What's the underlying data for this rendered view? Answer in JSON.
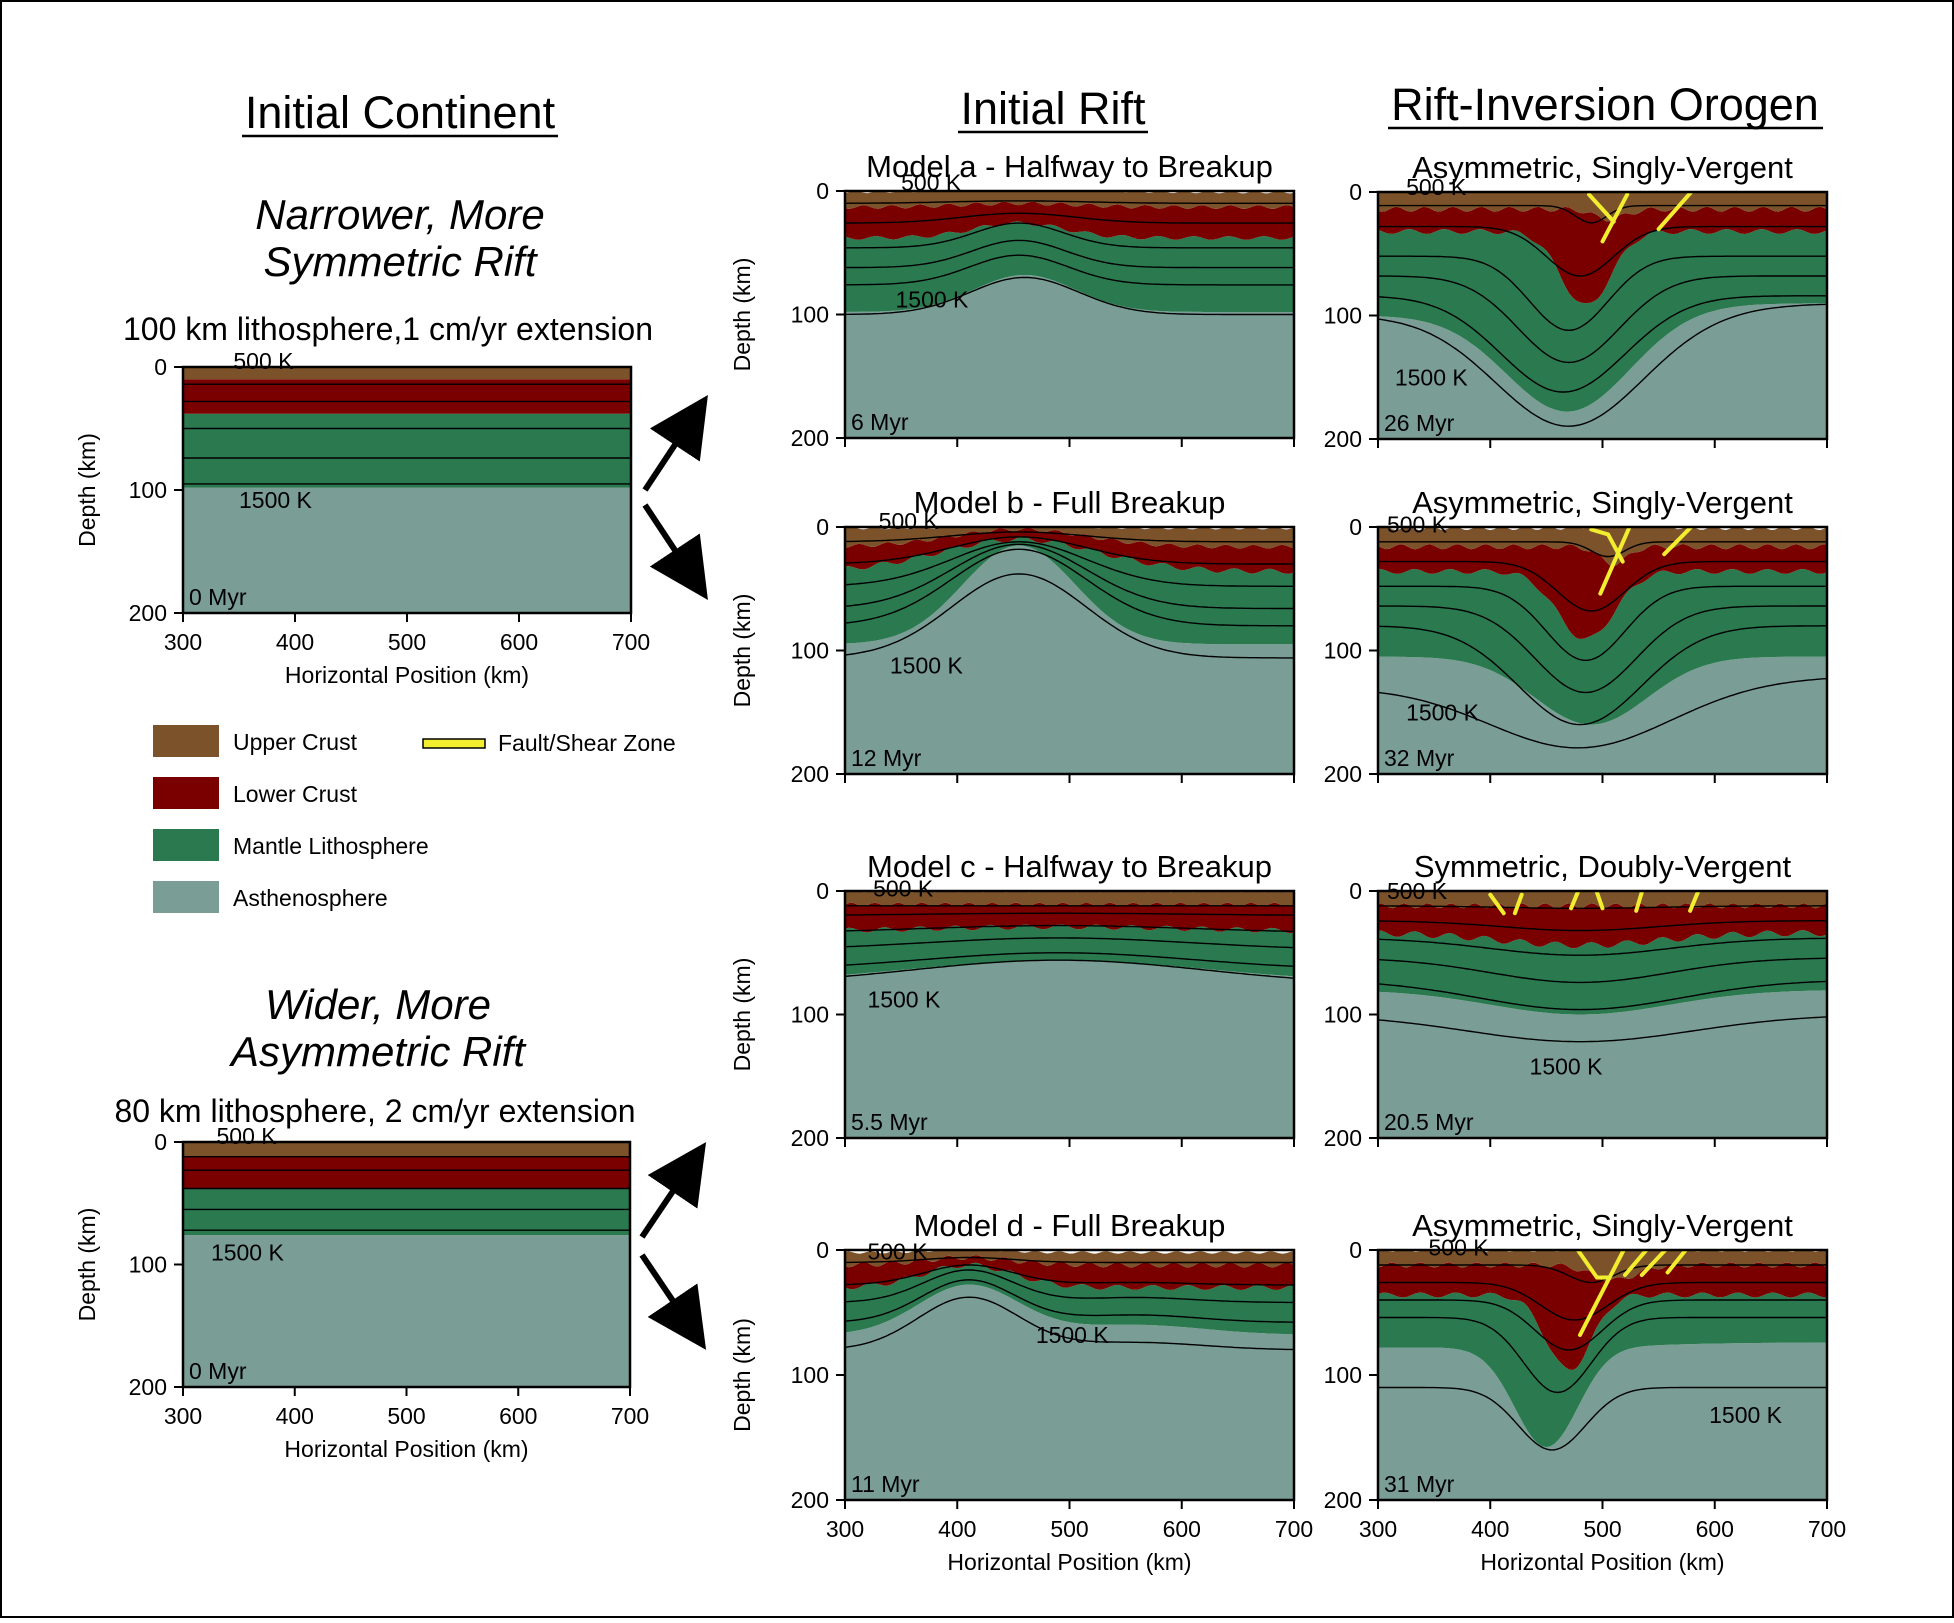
{
  "headers": {
    "initial_continent": "Initial Continent",
    "initial_rift": "Initial Rift",
    "orogen": "Rift-Inversion Orogen"
  },
  "scenarios": [
    {
      "title_line1": "Narrower, More",
      "title_line2": "Symmetric Rift",
      "description": "100 km lithosphere,1 cm/yr extension"
    },
    {
      "title_line1": "Wider, More",
      "title_line2": "Asymmetric Rift",
      "description": "80 km lithosphere, 2 cm/yr extension"
    }
  ],
  "axis": {
    "y_label": "Depth (km)",
    "x_label": "Horizontal Position (km)",
    "y_ticks": [
      "0",
      "100",
      "200"
    ],
    "x_ticks": [
      "300",
      "400",
      "500",
      "600",
      "700"
    ],
    "x_range": [
      300,
      700
    ],
    "y_range": [
      0,
      200
    ]
  },
  "legend": {
    "upper_crust": "Upper Crust",
    "lower_crust": "Lower Crust",
    "mantle": "Mantle Lithosphere",
    "asthenosphere": "Asthenosphere",
    "fault": "Fault/Shear Zone"
  },
  "colors": {
    "upper_crust": "#7b5229",
    "lower_crust": "#7a0000",
    "mantle": "#2b7a4f",
    "asthenosphere": "#7a9e96",
    "fault": "#f2ee2f"
  },
  "panels": {
    "ic1": {
      "temp_top": "500 K",
      "temp_bottom": "1500 K",
      "time": "0 Myr"
    },
    "ic2": {
      "temp_top": "500 K",
      "temp_bottom": "1500 K",
      "time": "0 Myr"
    },
    "ra": {
      "title": "Model a - Halfway to Breakup",
      "temp_top": "500 K",
      "temp_bottom": "1500 K",
      "time": "6 Myr"
    },
    "rb": {
      "title": "Model b - Full Breakup",
      "temp_top": "500 K",
      "temp_bottom": "1500 K",
      "time": "12 Myr"
    },
    "rc": {
      "title": "Model c - Halfway to Breakup",
      "temp_top": "500 K",
      "temp_bottom": "1500 K",
      "time": "5.5 Myr"
    },
    "rd": {
      "title": "Model d - Full Breakup",
      "temp_top": "500 K",
      "temp_bottom": "1500 K",
      "time": "11 Myr"
    },
    "oa": {
      "title": "Asymmetric, Singly-Vergent",
      "temp_top": "500 K",
      "temp_bottom": "1500 K",
      "time": "26 Myr"
    },
    "ob": {
      "title": "Asymmetric, Singly-Vergent",
      "temp_top": "500 K",
      "temp_bottom": "1500 K",
      "time": "32 Myr"
    },
    "oc": {
      "title": "Symmetric, Doubly-Vergent",
      "temp_top": "500 K",
      "temp_bottom": "1500 K",
      "time": "20.5 Myr"
    },
    "od": {
      "title": "Asymmetric, Singly-Vergent",
      "temp_top": "500 K",
      "temp_bottom": "1500 K",
      "time": "31 Myr"
    }
  }
}
